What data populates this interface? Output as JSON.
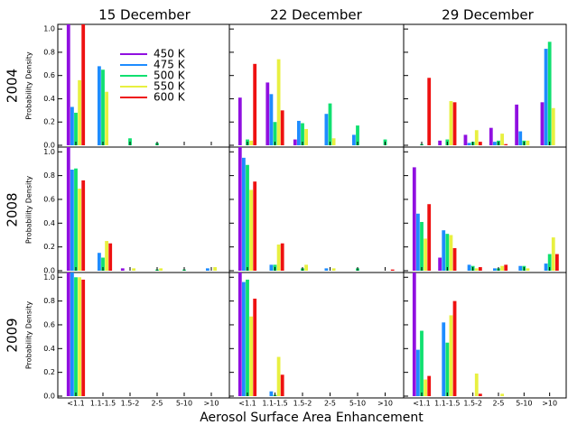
{
  "figure": {
    "columns": [
      "15 December",
      "22 December",
      "29 December"
    ],
    "rows": [
      "2004",
      "2008",
      "2009"
    ],
    "xlabel": "Aerosol Surface Area Enhancement"
  },
  "chart_data": [
    {
      "type": "bar",
      "ylabel": "Probability Density",
      "ylim": [
        0,
        1.04
      ],
      "yticks": [
        {
          "value": 0,
          "label": "0.0"
        },
        0.2,
        0.4,
        0.6,
        0.8,
        {
          "value": 1,
          "label": "1.0"
        }
      ],
      "series": [
        {
          "name": "450 K",
          "color": "#9010e0",
          "values": [
            1.04,
            0,
            0,
            0,
            0,
            0
          ]
        },
        {
          "name": "475 K",
          "color": "#1e8cff",
          "values": [
            0.33,
            0.68,
            0,
            0,
            0,
            0
          ]
        },
        {
          "name": "500 K",
          "color": "#10e070",
          "values": [
            0.28,
            0.65,
            0.06,
            0.02,
            0,
            0
          ]
        },
        {
          "name": "550 K",
          "color": "#e8f040",
          "values": [
            0.56,
            0.46,
            0,
            0,
            0,
            0
          ]
        },
        {
          "name": "600 K",
          "color": "#ee1111",
          "values": [
            1.04,
            0,
            0,
            0,
            0,
            0
          ]
        }
      ]
    },
    {
      "type": "bar",
      "ylim": [
        0,
        1.04
      ],
      "yticks": [
        0,
        0.2,
        0.4,
        0.6,
        0.8,
        1
      ],
      "series": [
        {
          "color": "#9010e0",
          "values": [
            0.41,
            0.54,
            0.05,
            0,
            0,
            0
          ]
        },
        {
          "color": "#1e8cff",
          "values": [
            0,
            0.44,
            0.21,
            0.27,
            0.09,
            0
          ]
        },
        {
          "color": "#10e070",
          "values": [
            0.05,
            0.2,
            0.19,
            0.36,
            0.17,
            0.05
          ]
        },
        {
          "color": "#e8f040",
          "values": [
            0.04,
            0.74,
            0.14,
            0.06,
            0,
            0
          ]
        },
        {
          "color": "#ee1111",
          "values": [
            0.7,
            0.3,
            0,
            0,
            0,
            0
          ]
        }
      ]
    },
    {
      "type": "bar",
      "ylim": [
        0,
        1.04
      ],
      "yticks": [
        0,
        0.2,
        0.4,
        0.6,
        0.8,
        1
      ],
      "series": [
        {
          "color": "#9010e0",
          "values": [
            0,
            0.04,
            0.09,
            0.15,
            0.35,
            0.37
          ]
        },
        {
          "color": "#1e8cff",
          "values": [
            0,
            0,
            0.02,
            0.03,
            0.12,
            0.83
          ]
        },
        {
          "color": "#10e070",
          "values": [
            0.01,
            0.05,
            0.03,
            0.04,
            0.04,
            0.89
          ]
        },
        {
          "color": "#e8f040",
          "values": [
            0,
            0.38,
            0.13,
            0.1,
            0.04,
            0.32
          ]
        },
        {
          "color": "#ee1111",
          "values": [
            0.58,
            0.37,
            0.03,
            0.01,
            0,
            0
          ]
        }
      ]
    },
    {
      "type": "bar",
      "ylabel": "Probability Density",
      "ylim": [
        0,
        1.04
      ],
      "yticks": [
        {
          "value": 0,
          "label": "0.0"
        },
        0.2,
        0.4,
        0.6,
        0.8,
        {
          "value": 1,
          "label": "1.0"
        }
      ],
      "series": [
        {
          "color": "#9010e0",
          "values": [
            1.04,
            0,
            0.02,
            0,
            0,
            0
          ]
        },
        {
          "color": "#1e8cff",
          "values": [
            0.85,
            0.15,
            0,
            0,
            0,
            0.02
          ]
        },
        {
          "color": "#10e070",
          "values": [
            0.86,
            0.11,
            0,
            0.01,
            0.01,
            0
          ]
        },
        {
          "color": "#e8f040",
          "values": [
            0.69,
            0.25,
            0.02,
            0.02,
            0,
            0.03
          ]
        },
        {
          "color": "#ee1111",
          "values": [
            0.76,
            0.23,
            0,
            0,
            0,
            0
          ]
        }
      ]
    },
    {
      "type": "bar",
      "ylim": [
        0,
        1.04
      ],
      "yticks": [
        0,
        0.2,
        0.4,
        0.6,
        0.8,
        1
      ],
      "series": [
        {
          "color": "#9010e0",
          "values": [
            1.04,
            0,
            0,
            0,
            0,
            0
          ]
        },
        {
          "color": "#1e8cff",
          "values": [
            0.95,
            0.05,
            0,
            0.02,
            0,
            0
          ]
        },
        {
          "color": "#10e070",
          "values": [
            0.89,
            0.05,
            0.02,
            0,
            0.02,
            0
          ]
        },
        {
          "color": "#e8f040",
          "values": [
            0.68,
            0.22,
            0.05,
            0.02,
            0,
            0
          ]
        },
        {
          "color": "#ee1111",
          "values": [
            0.75,
            0.23,
            0,
            0,
            0,
            0.01
          ]
        }
      ]
    },
    {
      "type": "bar",
      "ylim": [
        0,
        1.04
      ],
      "yticks": [
        0,
        0.2,
        0.4,
        0.6,
        0.8,
        1
      ],
      "series": [
        {
          "color": "#9010e0",
          "values": [
            0.87,
            0.11,
            0,
            0,
            0,
            0
          ]
        },
        {
          "color": "#1e8cff",
          "values": [
            0.48,
            0.34,
            0.05,
            0.02,
            0.04,
            0.06
          ]
        },
        {
          "color": "#10e070",
          "values": [
            0.41,
            0.31,
            0.04,
            0.02,
            0.04,
            0.14
          ]
        },
        {
          "color": "#e8f040",
          "values": [
            0.27,
            0.3,
            0.02,
            0.04,
            0.02,
            0.28
          ]
        },
        {
          "color": "#ee1111",
          "values": [
            0.56,
            0.19,
            0.03,
            0.05,
            0,
            0.14
          ]
        }
      ]
    },
    {
      "type": "bar",
      "ylabel": "Probability Density",
      "ylim": [
        0,
        1.04
      ],
      "yticks": [
        {
          "value": 0,
          "label": "0.0"
        },
        0.2,
        0.4,
        0.6,
        0.8,
        {
          "value": 1,
          "label": "1.0"
        }
      ],
      "categories": [
        "<1.1",
        "1.1-1.5",
        "1.5-2",
        "2-5",
        "5-10",
        ">10"
      ],
      "series": [
        {
          "color": "#9010e0",
          "values": [
            1.04,
            0,
            0,
            0,
            0,
            0
          ]
        },
        {
          "color": "#1e8cff",
          "values": [
            1.04,
            0,
            0,
            0,
            0,
            0
          ]
        },
        {
          "color": "#10e070",
          "values": [
            1.0,
            0,
            0,
            0,
            0,
            0
          ]
        },
        {
          "color": "#e8f040",
          "values": [
            1.0,
            0,
            0,
            0,
            0,
            0
          ]
        },
        {
          "color": "#ee1111",
          "values": [
            0.98,
            0,
            0,
            0,
            0,
            0
          ]
        }
      ]
    },
    {
      "type": "bar",
      "ylim": [
        0,
        1.04
      ],
      "yticks": [
        0,
        0.2,
        0.4,
        0.6,
        0.8,
        1
      ],
      "categories": [
        "<1.1",
        "1.1-1.5",
        "1.5-2",
        "2-5",
        "5-10",
        ">10"
      ],
      "series": [
        {
          "color": "#9010e0",
          "values": [
            1.04,
            0,
            0,
            0,
            0,
            0
          ]
        },
        {
          "color": "#1e8cff",
          "values": [
            0.96,
            0.04,
            0,
            0,
            0,
            0
          ]
        },
        {
          "color": "#10e070",
          "values": [
            0.98,
            0.01,
            0,
            0,
            0,
            0
          ]
        },
        {
          "color": "#e8f040",
          "values": [
            0.67,
            0.33,
            0,
            0,
            0,
            0
          ]
        },
        {
          "color": "#ee1111",
          "values": [
            0.82,
            0.18,
            0,
            0,
            0,
            0
          ]
        }
      ]
    },
    {
      "type": "bar",
      "ylim": [
        0,
        1.04
      ],
      "yticks": [
        0,
        0.2,
        0.4,
        0.6,
        0.8,
        1
      ],
      "categories": [
        "<1.1",
        "1.1-1.5",
        "1.5-2",
        "2-5",
        "5-10",
        ">10"
      ],
      "series": [
        {
          "color": "#9010e0",
          "values": [
            1.04,
            0,
            0,
            0,
            0,
            0
          ]
        },
        {
          "color": "#1e8cff",
          "values": [
            0.39,
            0.62,
            0,
            0,
            0,
            0
          ]
        },
        {
          "color": "#10e070",
          "values": [
            0.55,
            0.45,
            0,
            0,
            0,
            0
          ]
        },
        {
          "color": "#e8f040",
          "values": [
            0.14,
            0.68,
            0.19,
            0.02,
            0,
            0
          ]
        },
        {
          "color": "#ee1111",
          "values": [
            0.17,
            0.8,
            0.02,
            0,
            0,
            0
          ]
        }
      ]
    }
  ]
}
